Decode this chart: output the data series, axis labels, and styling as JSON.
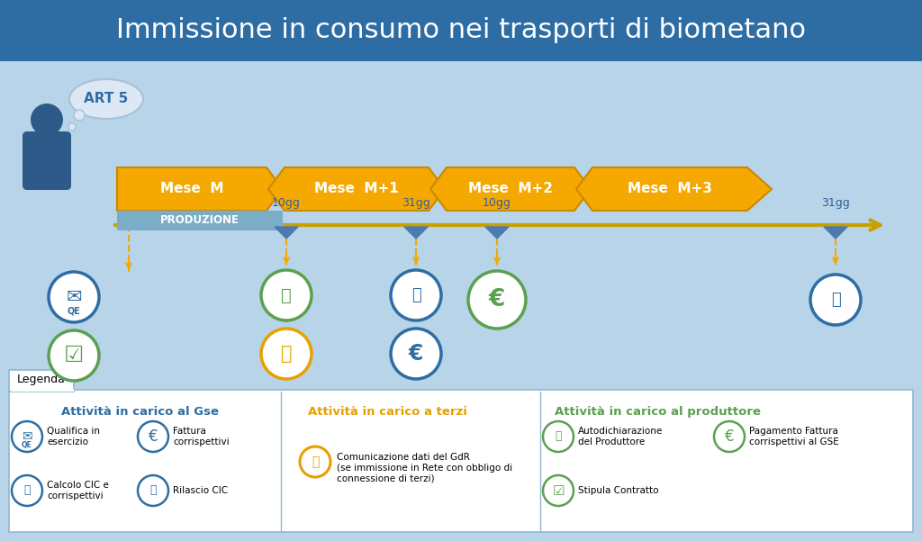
{
  "title": "Immissione in consumo nei trasporti di biometano",
  "title_bg": "#2E6DA4",
  "title_color": "white",
  "outer_bg": "#B8D4E8",
  "content_bg": "#C8DCF0",
  "arrow_color": "#F5A800",
  "arrow_edge": "#C88A00",
  "timeline_color": "#C8A000",
  "months": [
    "Mese  M",
    "Mese  M+1",
    "Mese  M+2",
    "Mese  M+3"
  ],
  "day_labels": [
    "10gg",
    "31gg",
    "10gg",
    "31gg"
  ],
  "produzione_label": "PRODUZIONE",
  "produzione_color": "#7BADC8",
  "blue_circle": "#2E6DA4",
  "green_circle": "#5BA050",
  "gold_circle": "#E8A000",
  "legenda_title": "Legenda",
  "gse_title": "Attività in carico al Gse",
  "terzi_title": "Attività in carico a terzi",
  "produttore_title": "Attività in carico al produttore",
  "gse_color": "#2E6DA4",
  "terzi_color": "#E8A000",
  "produttore_color": "#5BA050"
}
